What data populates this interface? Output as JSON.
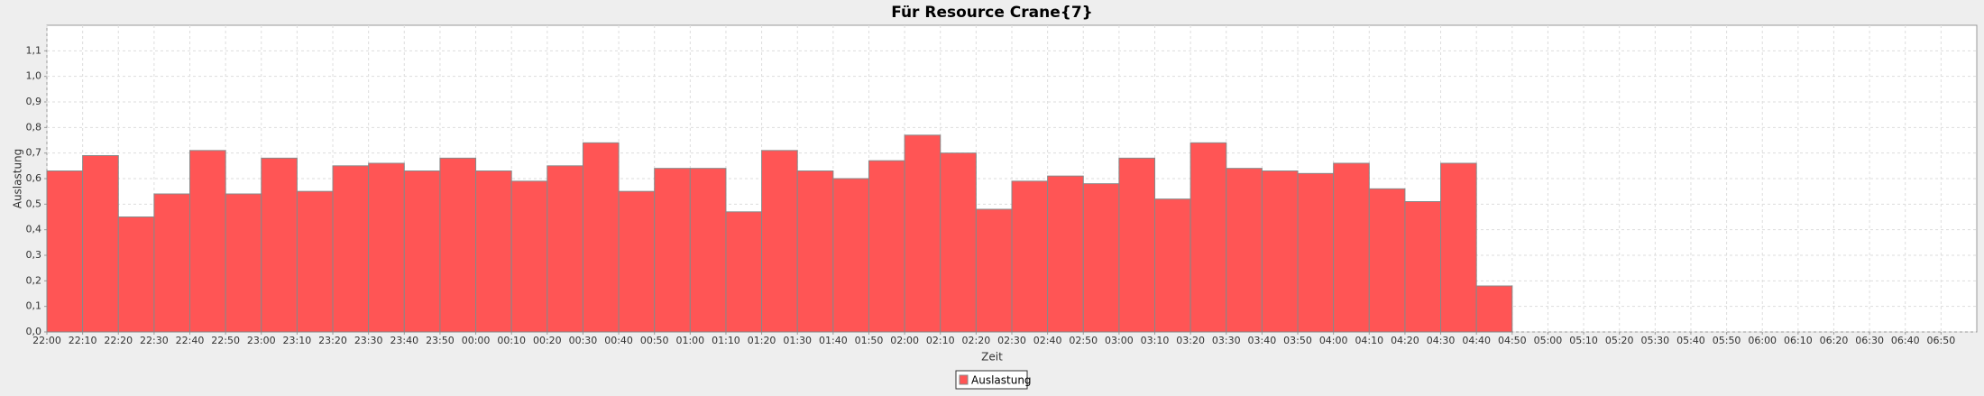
{
  "chart_data": {
    "type": "bar",
    "title": "Für Resource Crane{7}",
    "xlabel": "Zeit",
    "ylabel": "Auslastung",
    "categories": [
      "22:00",
      "22:10",
      "22:20",
      "22:30",
      "22:40",
      "22:50",
      "23:00",
      "23:10",
      "23:20",
      "23:30",
      "23:40",
      "23:50",
      "00:00",
      "00:10",
      "00:20",
      "00:30",
      "00:40",
      "00:50",
      "01:00",
      "01:10",
      "01:20",
      "01:30",
      "01:40",
      "01:50",
      "02:00",
      "02:10",
      "02:20",
      "02:30",
      "02:40",
      "02:50",
      "03:00",
      "03:10",
      "03:20",
      "03:30",
      "03:40",
      "03:50",
      "04:00",
      "04:10",
      "04:20",
      "04:30",
      "04:40",
      "04:50",
      "05:00",
      "05:10",
      "05:20",
      "05:30",
      "05:40",
      "05:50",
      "06:00",
      "06:10",
      "06:20",
      "06:30",
      "06:40",
      "06:50"
    ],
    "series": [
      {
        "name": "Auslastung",
        "color": "#ff5555",
        "values": [
          0.63,
          0.69,
          0.45,
          0.54,
          0.71,
          0.54,
          0.68,
          0.55,
          0.65,
          0.66,
          0.63,
          0.68,
          0.63,
          0.59,
          0.65,
          0.74,
          0.55,
          0.64,
          0.64,
          0.47,
          0.71,
          0.63,
          0.6,
          0.67,
          0.77,
          0.7,
          0.48,
          0.59,
          0.61,
          0.58,
          0.68,
          0.52,
          0.74,
          0.64,
          0.63,
          0.62,
          0.66,
          0.56,
          0.51,
          0.66,
          0.18,
          null,
          null,
          null,
          null,
          null,
          null,
          null,
          null,
          null,
          null,
          null,
          null,
          null
        ]
      }
    ],
    "ylim": [
      0,
      1.2
    ],
    "yticks": [
      {
        "value": 0,
        "label": "0,0"
      },
      {
        "value": 0.1,
        "label": "0,1"
      },
      {
        "value": 0.2,
        "label": "0,2"
      },
      {
        "value": 0.3,
        "label": "0,3"
      },
      {
        "value": 0.4,
        "label": "0,4"
      },
      {
        "value": 0.5,
        "label": "0,5"
      },
      {
        "value": 0.6,
        "label": "0,6"
      },
      {
        "value": 0.7,
        "label": "0,7"
      },
      {
        "value": 0.8,
        "label": "0,8"
      },
      {
        "value": 0.9,
        "label": "0,9"
      },
      {
        "value": 1.0,
        "label": "1,0"
      },
      {
        "value": 1.1,
        "label": "1,1"
      }
    ],
    "grid": true,
    "legend": "bottom"
  }
}
